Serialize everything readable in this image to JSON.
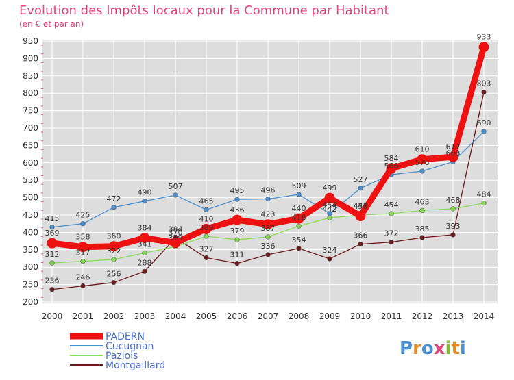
{
  "title": "Evolution des Impôts locaux pour la Commune par Habitant",
  "subtitle": "(en € et par an)",
  "brand": "Proxiti",
  "chart_data": {
    "type": "line",
    "x": [
      2000,
      2001,
      2002,
      2003,
      2004,
      2005,
      2006,
      2007,
      2008,
      2009,
      2010,
      2011,
      2012,
      2013,
      2014
    ],
    "ylim": [
      200,
      950
    ],
    "yticks": [
      200,
      250,
      300,
      350,
      400,
      450,
      500,
      550,
      600,
      650,
      700,
      750,
      800,
      850,
      900,
      950
    ],
    "grid": true,
    "legend": "bottom-left",
    "series": [
      {
        "name": "PADERN",
        "color": "#ee1111",
        "values": [
          369,
          358,
          360,
          384,
          370,
          410,
          436,
          423,
          440,
          499,
          447,
          584,
          610,
          617,
          933
        ]
      },
      {
        "name": "Cucugnan",
        "color": "#4a90d0",
        "values": [
          415,
          425,
          472,
          490,
          507,
          465,
          495,
          496,
          509,
          454,
          527,
          566,
          576,
          603,
          690
        ]
      },
      {
        "name": "Paziols",
        "color": "#88dd55",
        "values": [
          312,
          317,
          322,
          341,
          359,
          389,
          379,
          387,
          418,
          442,
          450,
          454,
          463,
          468,
          484
        ]
      },
      {
        "name": "Montgaillard",
        "color": "#6b1a1a",
        "values": [
          236,
          246,
          256,
          288,
          384,
          327,
          311,
          336,
          354,
          324,
          366,
          372,
          385,
          393,
          803
        ]
      }
    ]
  }
}
